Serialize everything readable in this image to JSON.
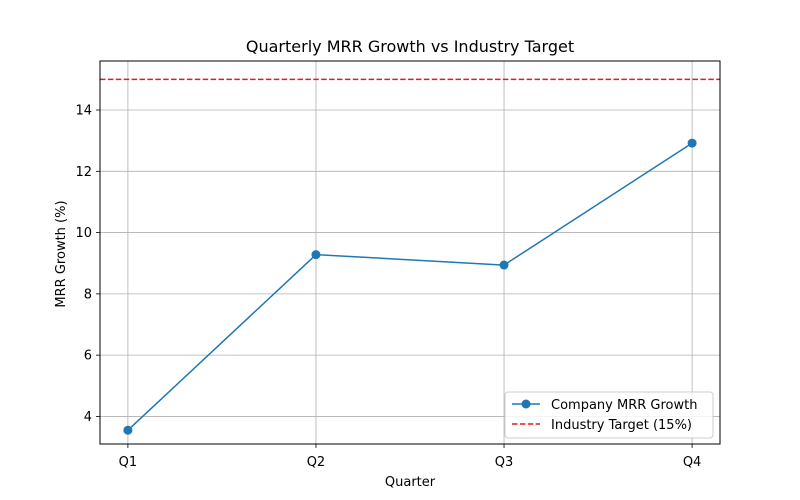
{
  "chart_data": {
    "type": "line",
    "title": "Quarterly MRR Growth vs Industry Target",
    "xlabel": "Quarter",
    "ylabel": "MRR Growth (%)",
    "categories": [
      "Q1",
      "Q2",
      "Q3",
      "Q4"
    ],
    "ylim": [
      3.1,
      15.6
    ],
    "yticks": [
      4,
      6,
      8,
      10,
      12,
      14
    ],
    "grid": true,
    "legend_position": "lower-right",
    "series": [
      {
        "name": "Company MRR Growth",
        "values": [
          3.55,
          9.28,
          8.94,
          12.92
        ],
        "color": "#1f77b4",
        "style": "solid",
        "marker": "circle"
      }
    ],
    "reference_lines": [
      {
        "name": "Industry Target (15%)",
        "value": 15,
        "color": "#e41a1c",
        "style": "dashed"
      }
    ]
  }
}
